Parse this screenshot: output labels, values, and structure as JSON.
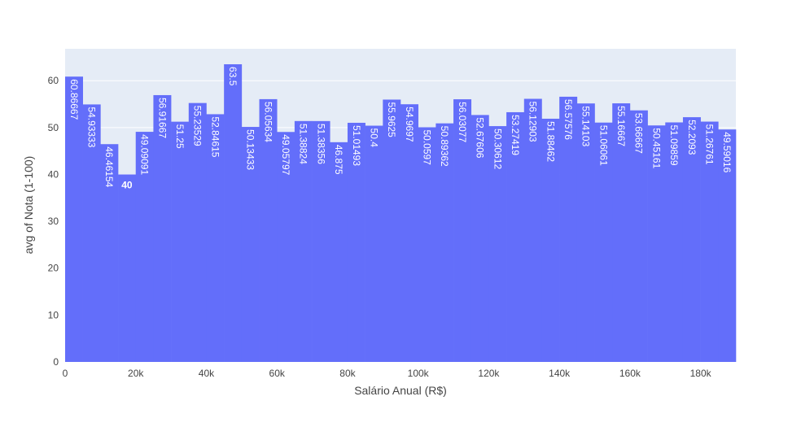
{
  "chart_data": {
    "type": "bar",
    "title": "",
    "xlabel": "Salário Anual (R$)",
    "ylabel": "avg of Nota (1-100)",
    "xlim": [
      0,
      190000
    ],
    "ylim": [
      0,
      66.8
    ],
    "bin_width": 5000,
    "x_tick_values": [
      0,
      20000,
      40000,
      60000,
      80000,
      100000,
      120000,
      140000,
      160000,
      180000
    ],
    "x_tick_labels": [
      "0",
      "20k",
      "40k",
      "60k",
      "80k",
      "100k",
      "120k",
      "140k",
      "160k",
      "180k"
    ],
    "y_tick_values": [
      0,
      10,
      20,
      30,
      40,
      50,
      60
    ],
    "y_tick_labels": [
      "0",
      "10",
      "20",
      "30",
      "40",
      "50",
      "60"
    ],
    "grid": true,
    "colors": {
      "bar": "#636efa",
      "plot_bg": "#e5ecf6",
      "grid": "#ffffff",
      "label_inside": "#ffffff",
      "label_outside": "#444444"
    },
    "bins": [
      {
        "x0": 0,
        "value": 60.86667,
        "label": "60.86667"
      },
      {
        "x0": 5000,
        "value": 54.93333,
        "label": "54.93333"
      },
      {
        "x0": 10000,
        "value": 46.46154,
        "label": "46.46154"
      },
      {
        "x0": 15000,
        "value": 40,
        "label": "40"
      },
      {
        "x0": 20000,
        "value": 49.09091,
        "label": "49.09091"
      },
      {
        "x0": 25000,
        "value": 56.91667,
        "label": "56.91667"
      },
      {
        "x0": 30000,
        "value": 51.25,
        "label": "51.25"
      },
      {
        "x0": 35000,
        "value": 55.23529,
        "label": "55.23529"
      },
      {
        "x0": 40000,
        "value": 52.84615,
        "label": "52.84615"
      },
      {
        "x0": 45000,
        "value": 63.5,
        "label": "63.5"
      },
      {
        "x0": 50000,
        "value": 50.13433,
        "label": "50.13433"
      },
      {
        "x0": 55000,
        "value": 56.05634,
        "label": "56.05634"
      },
      {
        "x0": 60000,
        "value": 49.05797,
        "label": "49.05797"
      },
      {
        "x0": 65000,
        "value": 51.38824,
        "label": "51.38824"
      },
      {
        "x0": 70000,
        "value": 51.38356,
        "label": "51.38356"
      },
      {
        "x0": 75000,
        "value": 46.875,
        "label": "46.875"
      },
      {
        "x0": 80000,
        "value": 51.01493,
        "label": "51.01493"
      },
      {
        "x0": 85000,
        "value": 50.4,
        "label": "50.4"
      },
      {
        "x0": 90000,
        "value": 55.9625,
        "label": "55.9625"
      },
      {
        "x0": 95000,
        "value": 54.9697,
        "label": "54.9697"
      },
      {
        "x0": 100000,
        "value": 50.0597,
        "label": "50.0597"
      },
      {
        "x0": 105000,
        "value": 50.89362,
        "label": "50.89362"
      },
      {
        "x0": 110000,
        "value": 56.03077,
        "label": "56.03077"
      },
      {
        "x0": 115000,
        "value": 52.67606,
        "label": "52.67606"
      },
      {
        "x0": 120000,
        "value": 50.30612,
        "label": "50.30612"
      },
      {
        "x0": 125000,
        "value": 53.27419,
        "label": "53.27419"
      },
      {
        "x0": 130000,
        "value": 56.12903,
        "label": "56.12903"
      },
      {
        "x0": 135000,
        "value": 51.88462,
        "label": "51.88462"
      },
      {
        "x0": 140000,
        "value": 56.57576,
        "label": "56.57576"
      },
      {
        "x0": 145000,
        "value": 55.14103,
        "label": "55.14103"
      },
      {
        "x0": 150000,
        "value": 51.06061,
        "label": "51.06061"
      },
      {
        "x0": 155000,
        "value": 55.16667,
        "label": "55.16667"
      },
      {
        "x0": 160000,
        "value": 53.66667,
        "label": "53.66667"
      },
      {
        "x0": 165000,
        "value": 50.45161,
        "label": "50.45161"
      },
      {
        "x0": 170000,
        "value": 51.09859,
        "label": "51.09859"
      },
      {
        "x0": 175000,
        "value": 52.2093,
        "label": "52.2093"
      },
      {
        "x0": 180000,
        "value": 51.26761,
        "label": "51.26761"
      },
      {
        "x0": 185000,
        "value": 49.59016,
        "label": "49.59016"
      }
    ]
  }
}
